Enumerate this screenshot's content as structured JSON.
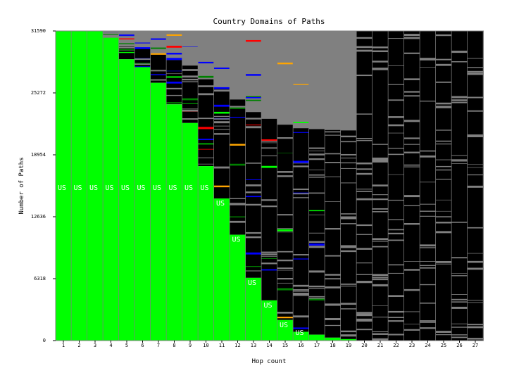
{
  "chart_data": {
    "type": "bar",
    "title": "Country Domains of Paths",
    "xlabel": "Hop count",
    "ylabel": "Number of Paths",
    "x": [
      1,
      2,
      3,
      4,
      5,
      6,
      7,
      8,
      9,
      10,
      11,
      12,
      13,
      14,
      15,
      16,
      17,
      18,
      19,
      20,
      21,
      22,
      23,
      24,
      25,
      26,
      27
    ],
    "x_tick_labels": [
      "1",
      "2",
      "3",
      "4",
      "5",
      "6",
      "7",
      "8",
      "9",
      "10",
      "11",
      "12",
      "13",
      "14",
      "15",
      "16",
      "17",
      "18",
      "19",
      "20",
      "21",
      "22",
      "23",
      "24",
      "25",
      "26",
      "27"
    ],
    "y_tick_labels": [
      "0",
      "6318",
      "12636",
      "18954",
      "25272",
      "31590"
    ],
    "y_ticks": [
      0,
      6318,
      12636,
      18954,
      25272,
      31590
    ],
    "ylim": [
      0,
      31590
    ],
    "grid": false,
    "series": [
      {
        "name": "US",
        "values": [
          31590,
          31590,
          31590,
          30900,
          28700,
          27900,
          26300,
          24100,
          22200,
          17800,
          14500,
          10800,
          6400,
          4100,
          2100,
          900,
          600,
          300,
          150,
          0,
          0,
          0,
          0,
          0,
          0,
          0,
          0
        ],
        "labels": [
          "US",
          "US",
          "US",
          "US",
          "US",
          "US",
          "US",
          "US",
          "US",
          "US",
          "US",
          "US",
          "US",
          "US",
          "US",
          "US",
          "",
          "",
          "",
          "",
          "",
          "",
          "",
          "",
          "",
          "",
          ""
        ]
      }
    ],
    "colors": {
      "us": "#00ff00",
      "other_domains": "#808080",
      "unresolved": "#000000",
      "dark_green": "#008000",
      "blue": "#0000ff",
      "red": "#ff0000",
      "orange": "#ffa500",
      "separator": "#808080"
    }
  }
}
